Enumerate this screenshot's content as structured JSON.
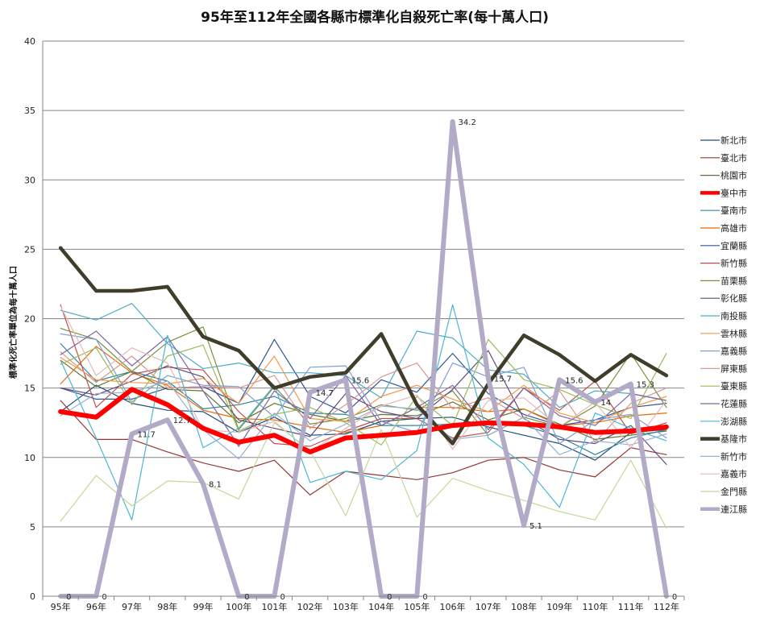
{
  "chart_data": {
    "type": "line",
    "title": "95年至112年全國各縣市標準化自殺死亡率(每十萬人口)",
    "ylabel": "標準化死亡率單位為每十萬人口",
    "xlabel": "",
    "ylim": [
      0,
      40
    ],
    "yticks": [
      "0",
      "5",
      "10",
      "15",
      "20",
      "25",
      "30",
      "35",
      "40"
    ],
    "categories": [
      "95年",
      "96年",
      "97年",
      "98年",
      "99年",
      "100年",
      "101年",
      "102年",
      "103年",
      "104年",
      "105年",
      "106年",
      "107年",
      "108年",
      "109年",
      "110年",
      "111年",
      "112年"
    ],
    "grid": true,
    "legend_position": "right",
    "series": [
      {
        "name": "新北市",
        "color": "#1f4e79",
        "width": 1.2,
        "values": [
          13.3,
          15.2,
          13.9,
          13.4,
          13.3,
          11.8,
          12.9,
          11.6,
          11.7,
          12.6,
          12.8,
          12.9,
          12.2,
          11.6,
          11.0,
          9.8,
          11.8,
          12.0
        ]
      },
      {
        "name": "臺北市",
        "color": "#943634",
        "width": 1.2,
        "values": [
          14.1,
          11.3,
          11.3,
          10.4,
          9.6,
          9.0,
          9.8,
          7.3,
          9.0,
          8.7,
          8.4,
          8.9,
          9.8,
          10.0,
          9.1,
          8.6,
          10.7,
          10.2
        ]
      },
      {
        "name": "桃園市",
        "color": "#5f7530",
        "width": 1.2,
        "values": [
          17.0,
          15.1,
          16.2,
          14.9,
          14.8,
          12.5,
          13.9,
          13.1,
          12.6,
          13.1,
          13.0,
          14.0,
          12.7,
          13.5,
          12.4,
          11.3,
          11.6,
          11.9
        ]
      },
      {
        "name": "臺中市",
        "color": "#ff0000",
        "width": 6,
        "values": [
          13.3,
          12.9,
          14.9,
          13.8,
          12.1,
          11.1,
          11.6,
          10.4,
          11.4,
          11.6,
          11.8,
          12.3,
          12.5,
          12.4,
          12.2,
          11.8,
          11.9,
          12.2
        ]
      },
      {
        "name": "臺南市",
        "color": "#31859c",
        "width": 1.2,
        "values": [
          18.2,
          15.5,
          16.2,
          15.5,
          13.5,
          13.8,
          14.4,
          13.2,
          13.1,
          12.3,
          12.3,
          12.4,
          12.6,
          12.3,
          11.5,
          10.2,
          11.4,
          12.0
        ]
      },
      {
        "name": "高雄市",
        "color": "#e36c09",
        "width": 1.2,
        "values": [
          15.3,
          18.0,
          16.1,
          15.2,
          13.4,
          12.8,
          12.7,
          12.2,
          11.8,
          12.3,
          13.6,
          13.6,
          13.3,
          13.5,
          12.3,
          12.5,
          13.0,
          13.2
        ]
      },
      {
        "name": "宜蘭縣",
        "color": "#2e5597",
        "width": 1.2,
        "values": [
          15.0,
          14.2,
          14.2,
          15.0,
          15.1,
          13.9,
          18.5,
          14.4,
          13.2,
          15.6,
          14.7,
          17.5,
          14.6,
          13.1,
          12.3,
          12.7,
          13.6,
          13.9
        ]
      },
      {
        "name": "新竹縣",
        "color": "#c0504d",
        "width": 1.2,
        "values": [
          21.0,
          13.6,
          16.0,
          16.5,
          16.3,
          13.3,
          11.0,
          10.8,
          11.9,
          12.8,
          12.8,
          11.4,
          11.8,
          15.0,
          13.4,
          15.5,
          11.7,
          12.5
        ]
      },
      {
        "name": "苗栗縣",
        "color": "#76923c",
        "width": 1.2,
        "values": [
          19.3,
          18.5,
          16.2,
          18.3,
          19.4,
          12.0,
          15.1,
          12.4,
          12.8,
          13.8,
          13.4,
          14.8,
          11.6,
          12.9,
          12.2,
          13.7,
          17.5,
          13.6
        ]
      },
      {
        "name": "彰化縣",
        "color": "#60497a",
        "width": 1.2,
        "values": [
          15.0,
          14.5,
          15.5,
          16.6,
          15.8,
          12.7,
          12.1,
          11.5,
          14.6,
          13.3,
          12.8,
          14.9,
          17.7,
          12.8,
          11.3,
          11.0,
          12.3,
          9.5
        ]
      },
      {
        "name": "南投縣",
        "color": "#4bacc6",
        "width": 1.2,
        "values": [
          20.6,
          19.9,
          21.1,
          18.2,
          16.4,
          16.8,
          16.1,
          16.1,
          15.9,
          14.3,
          19.1,
          18.6,
          16.3,
          16.0,
          13.6,
          14.8,
          14.6,
          14.1
        ]
      },
      {
        "name": "雲林縣",
        "color": "#f79646",
        "width": 1.2,
        "values": [
          17.2,
          15.6,
          15.4,
          15.3,
          15.7,
          13.9,
          17.3,
          12.8,
          12.6,
          14.4,
          15.2,
          14.2,
          13.3,
          15.2,
          13.2,
          12.5,
          13.6,
          14.4
        ]
      },
      {
        "name": "嘉義縣",
        "color": "#7f9fcf",
        "width": 1.2,
        "values": [
          18.9,
          18.5,
          14.0,
          15.9,
          15.2,
          15.1,
          12.9,
          16.5,
          16.6,
          12.6,
          11.8,
          16.8,
          15.8,
          16.5,
          11.0,
          12.7,
          13.1,
          11.4
        ]
      },
      {
        "name": "屏東縣",
        "color": "#d99694",
        "width": 1.2,
        "values": [
          17.6,
          15.4,
          17.3,
          15.0,
          15.1,
          15.0,
          15.9,
          12.1,
          13.8,
          15.8,
          16.8,
          13.5,
          14.3,
          12.8,
          14.8,
          11.1,
          13.9,
          15.0
        ]
      },
      {
        "name": "臺東縣",
        "color": "#9bbb59",
        "width": 1.2,
        "values": [
          16.7,
          17.9,
          13.8,
          17.3,
          18.1,
          11.9,
          13.1,
          13.6,
          12.5,
          10.9,
          14.4,
          12.3,
          18.5,
          15.6,
          14.9,
          13.8,
          12.8,
          17.5
        ]
      },
      {
        "name": "花蓮縣",
        "color": "#8064a2",
        "width": 1.2,
        "values": [
          17.4,
          19.1,
          16.6,
          18.7,
          14.8,
          10.8,
          14.8,
          12.8,
          15.9,
          12.3,
          13.6,
          15.2,
          12.0,
          15.0,
          13.0,
          12.3,
          14.6,
          14.1
        ]
      },
      {
        "name": "澎湖縣",
        "color": "#4bb6d4",
        "width": 1.2,
        "values": [
          17.0,
          11.4,
          5.5,
          18.8,
          10.7,
          12.1,
          15.2,
          8.2,
          9.0,
          8.4,
          10.5,
          21.0,
          11.4,
          9.5,
          6.4,
          13.2,
          12.1,
          11.2
        ]
      },
      {
        "name": "基隆市",
        "color": "#403d2b",
        "width": 4.5,
        "values": [
          25.1,
          22.0,
          22.0,
          22.3,
          18.7,
          17.7,
          15.0,
          15.8,
          16.1,
          18.9,
          13.8,
          11.0,
          15.3,
          18.8,
          17.4,
          15.5,
          17.4,
          15.9
        ]
      },
      {
        "name": "新竹市",
        "color": "#95b3d7",
        "width": 1.2,
        "values": [
          13.0,
          14.6,
          14.7,
          15.5,
          12.0,
          9.9,
          13.2,
          11.2,
          12.4,
          13.7,
          13.5,
          11.3,
          11.6,
          12.9,
          10.2,
          11.2,
          10.9,
          11.7
        ]
      },
      {
        "name": "嘉義市",
        "color": "#e6b9b8",
        "width": 1.2,
        "values": [
          20.9,
          15.9,
          17.9,
          16.8,
          12.0,
          11.8,
          12.6,
          10.4,
          12.1,
          13.7,
          14.5,
          10.6,
          14.1,
          14.3,
          12.2,
          14.0,
          10.7,
          14.1
        ]
      },
      {
        "name": "金門縣",
        "color": "#c4d79b",
        "width": 1.2,
        "values": [
          5.4,
          8.7,
          6.5,
          8.3,
          8.2,
          7.0,
          12.5,
          10.5,
          5.8,
          12.0,
          5.7,
          8.5,
          7.6,
          6.9,
          6.1,
          5.5,
          9.8,
          4.9
        ]
      },
      {
        "name": "連江縣",
        "color": "#b3aac7",
        "width": 6,
        "values": [
          0,
          0,
          11.7,
          12.7,
          8.1,
          0,
          0,
          14.7,
          15.6,
          0,
          0,
          34.2,
          15.7,
          5.1,
          15.6,
          14.0,
          15.3,
          0
        ],
        "labels": [
          "0",
          "0",
          "11.7",
          "12.7",
          "8.1",
          "0",
          "0",
          "14.7",
          "15.6",
          "0",
          "0",
          "34.2",
          "15.7",
          "5.1",
          "15.6",
          "14",
          "15.3",
          "0"
        ]
      }
    ]
  }
}
